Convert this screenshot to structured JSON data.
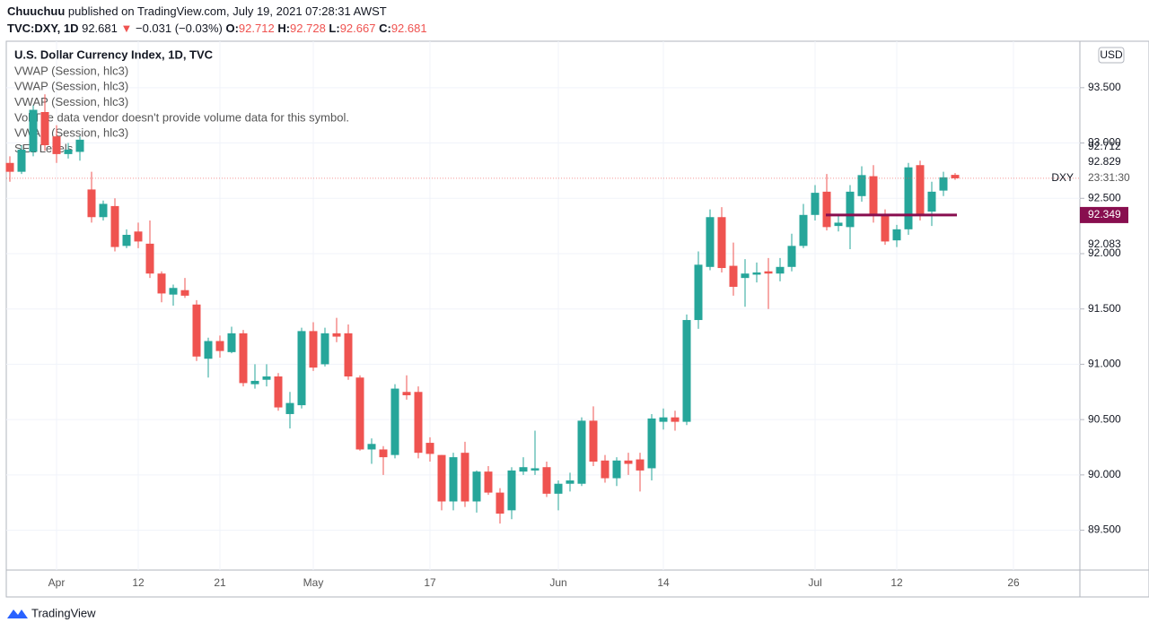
{
  "header": {
    "author": "Chuuchuu",
    "published": "published on TradingView.com, July 19, 2021 07:28:31 AWST",
    "symbol": "TVC:DXY, 1D",
    "last": "92.681",
    "arrow": "▼",
    "change": "−0.031 (−0.03%)",
    "ohlc": [
      {
        "key": "O:",
        "value": "92.712"
      },
      {
        "key": "H:",
        "value": "92.728"
      },
      {
        "key": "L:",
        "value": "92.667"
      },
      {
        "key": "C:",
        "value": "92.681"
      }
    ]
  },
  "chart_data": {
    "type": "candlestick",
    "title": "U.S. Dollar Currency Index, 1D, TVC",
    "legend": [
      "VWAP (Session, hlc3)",
      "VWAP (Session, hlc3)",
      "VWAP (Session, hlc3)",
      "Vol The data vendor doesn't provide volume data for this symbol.",
      "VWAP (Session, hlc3)",
      "SEL Levels"
    ],
    "currency": "USD",
    "symbol": "DXY",
    "countdown": "23:31:30",
    "up_color": "#26a69a",
    "down_color": "#ef5350",
    "categories": [
      null,
      null,
      null,
      null,
      "Apr",
      null,
      null,
      null,
      null,
      null,
      null,
      "12",
      null,
      null,
      null,
      null,
      null,
      null,
      "21",
      null,
      null,
      null,
      null,
      null,
      null,
      null,
      "May",
      null,
      null,
      null,
      null,
      null,
      null,
      null,
      null,
      null,
      "17",
      null,
      null,
      null,
      null,
      null,
      null,
      null,
      null,
      null,
      null,
      "Jun",
      null,
      null,
      null,
      null,
      null,
      null,
      null,
      null,
      "14",
      null,
      null,
      null,
      null,
      null,
      null,
      null,
      null,
      null,
      null,
      null,
      null,
      "Jul",
      null,
      null,
      null,
      null,
      null,
      null,
      "12",
      null,
      null,
      null,
      null,
      null,
      null,
      null,
      null,
      null,
      "26"
    ],
    "open": [
      92.82,
      92.74,
      92.92,
      93.28,
      93.06,
      92.9,
      92.92,
      92.58,
      92.33,
      92.43,
      92.07,
      92.2,
      92.09,
      91.82,
      91.63,
      91.67,
      91.54,
      91.05,
      91.21,
      91.11,
      91.28,
      90.82,
      90.86,
      90.89,
      90.55,
      90.63,
      91.3,
      91.0,
      91.28,
      91.28,
      90.88,
      90.23,
      90.23,
      90.18,
      90.75,
      90.75,
      90.29,
      90.18,
      89.76,
      90.2,
      89.76,
      90.03,
      89.84,
      89.68,
      90.03,
      90.04,
      90.07,
      89.83,
      89.92,
      89.92,
      90.49,
      90.13,
      89.97,
      90.13,
      90.14,
      90.06,
      90.48,
      90.52,
      90.48,
      91.4,
      91.88,
      92.33,
      91.89,
      91.78,
      91.81,
      91.84,
      91.82,
      91.88,
      92.07,
      92.35,
      92.56,
      92.25,
      92.24,
      92.52,
      92.7,
      92.36,
      92.12,
      92.22,
      92.8,
      92.38,
      92.57,
      92.712,
      null,
      null,
      null,
      null,
      null
    ],
    "high": [
      92.88,
      92.98,
      93.34,
      93.44,
      93.16,
      93.0,
      93.06,
      92.74,
      92.48,
      92.5,
      92.22,
      92.28,
      92.3,
      91.84,
      91.72,
      91.78,
      91.58,
      91.24,
      91.26,
      91.34,
      91.31,
      91.0,
      91.0,
      90.92,
      90.75,
      91.33,
      91.38,
      91.33,
      91.42,
      91.36,
      90.9,
      90.33,
      90.26,
      90.82,
      90.9,
      90.8,
      90.34,
      90.18,
      90.2,
      90.3,
      90.04,
      90.08,
      89.88,
      90.07,
      90.16,
      90.4,
      90.12,
      89.95,
      90.02,
      90.52,
      90.62,
      90.18,
      90.16,
      90.2,
      90.2,
      90.55,
      90.6,
      90.58,
      91.45,
      92.02,
      92.4,
      92.42,
      92.1,
      91.95,
      91.92,
      91.96,
      91.96,
      92.18,
      92.45,
      92.62,
      92.72,
      92.35,
      92.62,
      92.79,
      92.8,
      92.4,
      92.26,
      92.82,
      92.84,
      92.65,
      92.74,
      92.728,
      null,
      null,
      null,
      null,
      null
    ],
    "low": [
      92.65,
      92.72,
      92.88,
      92.93,
      92.82,
      92.86,
      92.84,
      92.28,
      92.3,
      92.02,
      92.05,
      92.05,
      91.78,
      91.56,
      91.53,
      91.6,
      91.03,
      90.88,
      91.06,
      91.1,
      90.8,
      90.78,
      90.8,
      90.58,
      90.42,
      90.6,
      90.94,
      90.98,
      91.2,
      90.86,
      90.22,
      90.1,
      90.0,
      90.15,
      90.68,
      90.15,
      90.12,
      89.68,
      89.68,
      89.71,
      89.66,
      89.82,
      89.56,
      89.6,
      90.0,
      90.0,
      89.8,
      89.68,
      89.85,
      89.9,
      90.08,
      89.93,
      89.9,
      90.0,
      89.85,
      89.95,
      90.41,
      90.4,
      90.45,
      91.32,
      91.85,
      91.83,
      91.62,
      91.52,
      91.74,
      91.5,
      91.75,
      91.84,
      92.05,
      92.3,
      92.21,
      92.2,
      92.04,
      92.47,
      92.28,
      92.08,
      92.06,
      92.17,
      92.3,
      92.25,
      92.52,
      92.667,
      null,
      null,
      null,
      null,
      null
    ],
    "close": [
      92.74,
      92.94,
      93.3,
      92.98,
      92.9,
      92.94,
      93.03,
      92.33,
      92.45,
      92.06,
      92.17,
      92.11,
      91.82,
      91.64,
      91.69,
      91.62,
      91.07,
      91.21,
      91.12,
      91.28,
      90.83,
      90.85,
      90.89,
      90.61,
      90.65,
      91.3,
      90.97,
      91.28,
      91.25,
      90.89,
      90.23,
      90.28,
      90.16,
      90.78,
      90.72,
      90.2,
      90.19,
      89.76,
      90.16,
      89.76,
      90.03,
      89.84,
      89.65,
      90.04,
      90.07,
      90.06,
      89.83,
      89.92,
      89.95,
      90.49,
      90.12,
      89.97,
      90.13,
      90.1,
      90.04,
      90.51,
      90.52,
      90.48,
      91.4,
      91.9,
      92.33,
      91.87,
      91.7,
      91.82,
      91.83,
      91.82,
      91.88,
      92.07,
      92.35,
      92.55,
      92.24,
      92.28,
      92.56,
      92.71,
      92.36,
      92.11,
      92.22,
      92.78,
      92.36,
      92.56,
      92.69,
      92.681,
      null,
      null,
      null,
      null,
      null
    ],
    "ylim": [
      89.14,
      93.92
    ],
    "yticks": [
      {
        "value": 89.5,
        "label": "89.500"
      },
      {
        "value": 90,
        "label": "90.000"
      },
      {
        "value": 90.5,
        "label": "90.500"
      },
      {
        "value": 91,
        "label": "91.000"
      },
      {
        "value": 91.5,
        "label": "91.500"
      },
      {
        "value": 92,
        "label": "92.000"
      },
      {
        "value": 92.5,
        "label": "92.500"
      },
      {
        "value": 93,
        "label": "93.000"
      },
      {
        "value": 93.5,
        "label": "93.500"
      }
    ],
    "price_labels": [
      {
        "value": 92.829,
        "label": "92.829"
      },
      {
        "value": 92.712,
        "label": "92.712"
      },
      {
        "value": 92.083,
        "label": "92.083"
      }
    ],
    "level_label": {
      "value": 92.349,
      "label": "92.349",
      "color": "#880e4f"
    },
    "grid": true
  },
  "footer": {
    "brand": "TradingView"
  }
}
